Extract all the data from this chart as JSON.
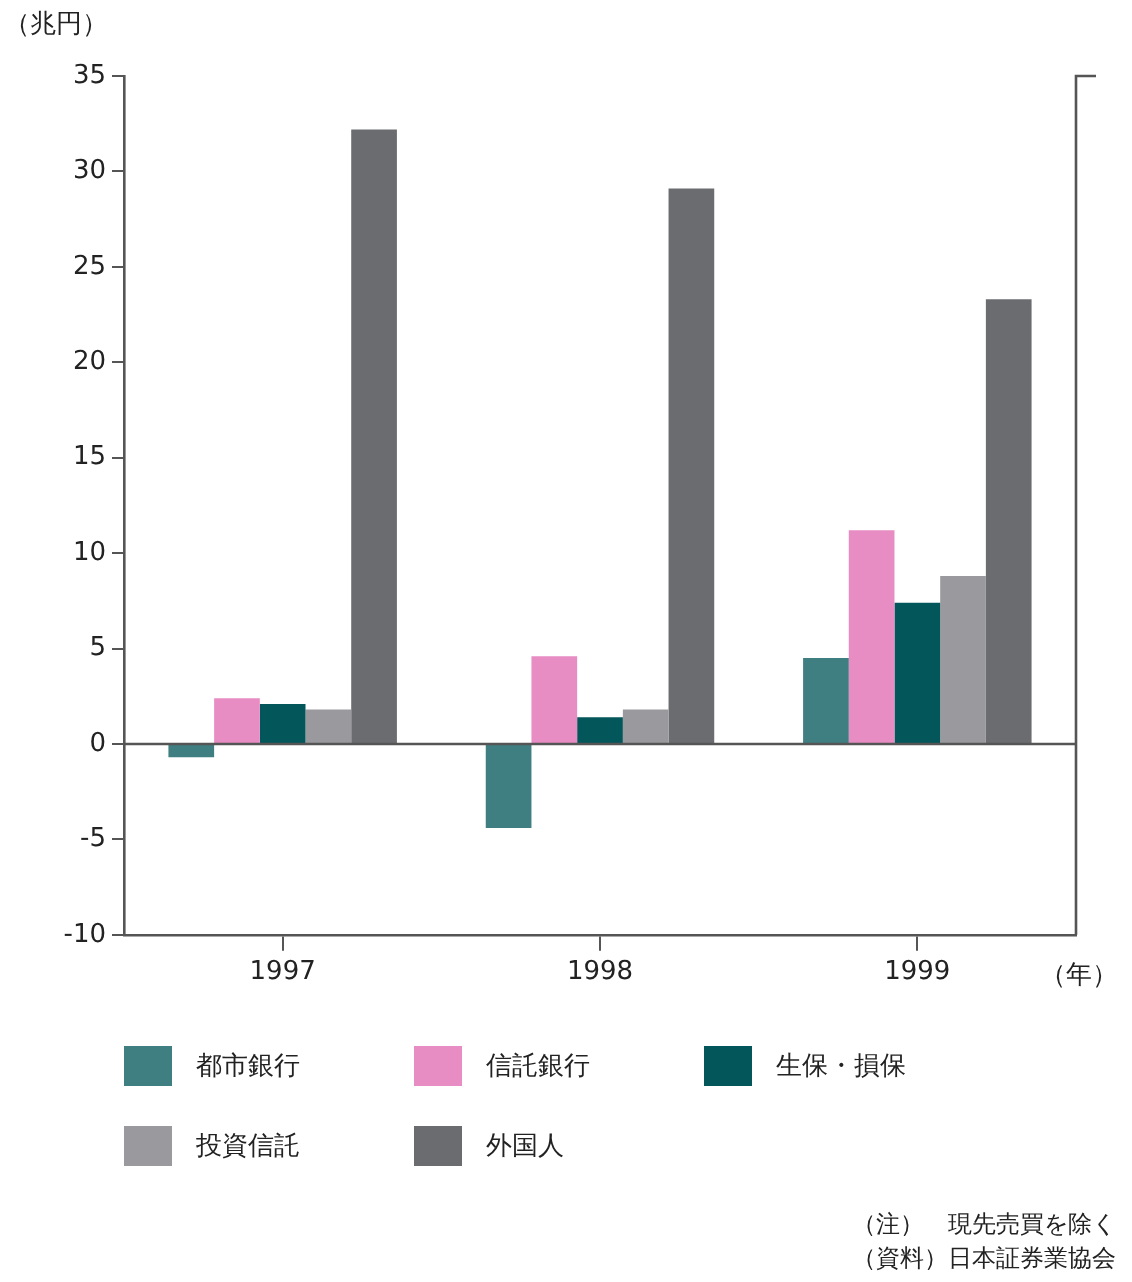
{
  "chart_data": {
    "type": "bar",
    "ylabel": "（兆円）",
    "xlabel": "（年）",
    "categories": [
      "1997",
      "1998",
      "1999"
    ],
    "series": [
      {
        "name": "都市銀行",
        "color": "#3f7f82",
        "values": [
          -0.7,
          -4.4,
          4.5
        ]
      },
      {
        "name": "信託銀行",
        "color": "#e88cc4",
        "values": [
          2.4,
          4.6,
          11.2
        ]
      },
      {
        "name": "生保・損保",
        "color": "#03565a",
        "values": [
          2.1,
          1.4,
          7.4
        ]
      },
      {
        "name": "投資信託",
        "color": "#9a9a9e",
        "values": [
          1.8,
          1.8,
          8.8
        ]
      },
      {
        "name": "外国人",
        "color": "#6b6c70",
        "values": [
          32.2,
          29.1,
          23.3
        ]
      }
    ],
    "ylim": [
      -10,
      35
    ],
    "yticks": [
      -10,
      -5,
      0,
      5,
      10,
      15,
      20,
      25,
      30,
      35
    ],
    "legend": "bottom",
    "annotations": [
      "（注）　現先売買を除く",
      "（資料）日本証券業協会"
    ]
  }
}
